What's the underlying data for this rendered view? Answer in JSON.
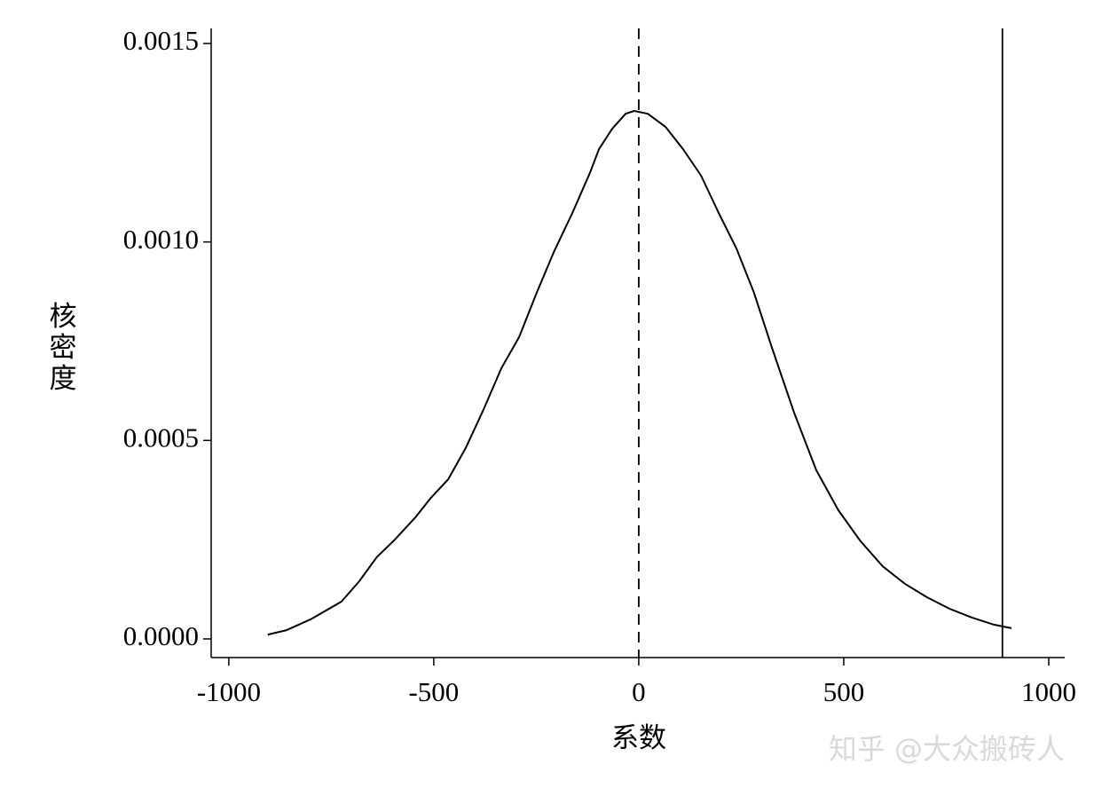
{
  "chart_data": {
    "type": "line",
    "x_label": "系数",
    "y_label": "核密度",
    "watermark": "知乎 @大众搬砖人",
    "x": [
      -905,
      -859,
      -801,
      -725,
      -682,
      -639,
      -595,
      -545,
      -509,
      -465,
      -422,
      -379,
      -335,
      -292,
      -249,
      -206,
      -162,
      -119,
      -97,
      -65,
      -32,
      -11,
      22,
      65,
      108,
      152,
      195,
      238,
      281,
      325,
      379,
      433,
      487,
      541,
      595,
      649,
      703,
      758,
      812,
      866,
      909
    ],
    "values": [
      1.1e-05,
      2.2e-05,
      4.9e-05,
      9.4e-05,
      0.000145,
      0.000206,
      0.00025,
      0.000306,
      0.000353,
      0.000402,
      0.000481,
      0.000577,
      0.000682,
      0.00076,
      0.000872,
      0.000977,
      0.001073,
      0.001174,
      0.001234,
      0.001285,
      0.001323,
      0.00133,
      0.001323,
      0.00129,
      0.001234,
      0.001167,
      0.001073,
      0.000984,
      0.000872,
      0.000733,
      0.00057,
      0.000425,
      0.000324,
      0.000246,
      0.000183,
      0.000139,
      0.000105,
      7.6e-05,
      5.4e-05,
      3.6e-05,
      2.7e-05
    ],
    "color": "#000000",
    "xlim": [
      -1043,
      1039
    ],
    "ylim": [
      -4.7e-05,
      0.001538
    ],
    "xticks": [
      -1000,
      -500,
      0,
      500,
      1000
    ],
    "yticks": [
      {
        "value": 0,
        "label": "0.0000"
      },
      {
        "value": 0.0005,
        "label": "0.0005"
      },
      {
        "value": 0.001,
        "label": "0.0010"
      },
      {
        "value": 0.0015,
        "label": "0.0015"
      }
    ],
    "vlines": [
      {
        "value": 0,
        "style": "dashed"
      },
      {
        "value": 887,
        "style": "solid"
      }
    ]
  }
}
